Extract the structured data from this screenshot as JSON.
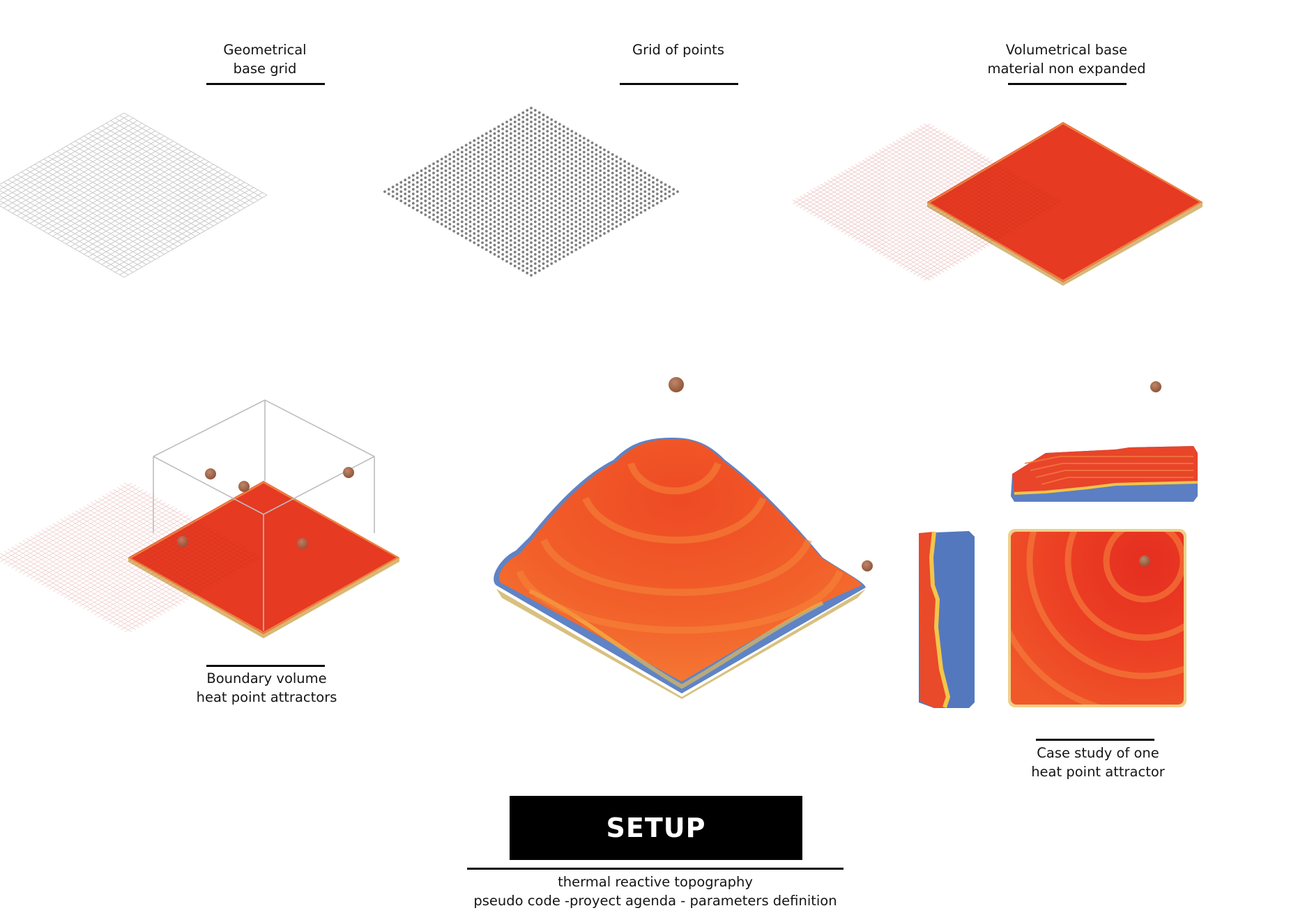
{
  "panels": {
    "geometric_grid": {
      "caption": [
        "Geometrical",
        "base grid"
      ]
    },
    "grid_points": {
      "caption": [
        "Grid of points"
      ]
    },
    "volumetric_base": {
      "caption": [
        "Volumetrical base",
        "material non expanded"
      ]
    },
    "boundary_volume": {
      "caption": [
        "Boundary volume",
        "heat point attractors"
      ]
    },
    "case_study": {
      "caption": [
        "Case study of one",
        "heat point attractor"
      ]
    }
  },
  "footer": {
    "title": "SETUP",
    "subtitle": [
      "thermal reactive topography",
      "pseudo code -proyect agenda - parameters definition"
    ]
  },
  "colors": {
    "material_red": "#e63a22",
    "material_orange": "#f25a1e",
    "cool_blue": "#5b7fc2",
    "edge_yellow": "#e8c34a",
    "attractor_brown": "#9a6140",
    "grid_line": "#c7c7c7",
    "dot_grey": "#7a7a7a"
  }
}
